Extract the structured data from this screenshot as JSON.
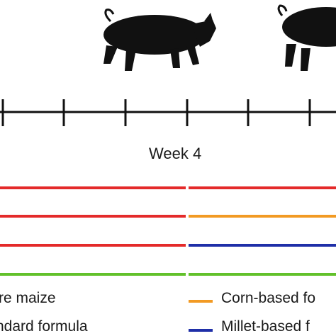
{
  "timeline": {
    "week_label": "Week 4"
  },
  "diet_lines": [
    {
      "name": "red-top",
      "first_color": "#e42a2a",
      "second_color": "#e42a2a"
    },
    {
      "name": "red-orange",
      "first_color": "#e42a2a",
      "second_color": "#f29a23"
    },
    {
      "name": "red-blue",
      "first_color": "#e42a2a",
      "second_color": "#1f2fa8"
    },
    {
      "name": "green",
      "first_color": "#62c12b",
      "second_color": "#62c12b"
    }
  ],
  "legend": {
    "left": [
      "re maize",
      "ndard formula"
    ],
    "right": [
      {
        "label": "Corn-based fo",
        "color": "#f29a23"
      },
      {
        "label": "Millet-based f",
        "color": "#1f2fa8"
      }
    ]
  },
  "icons": [
    "pig-icon",
    "pig-icon"
  ]
}
